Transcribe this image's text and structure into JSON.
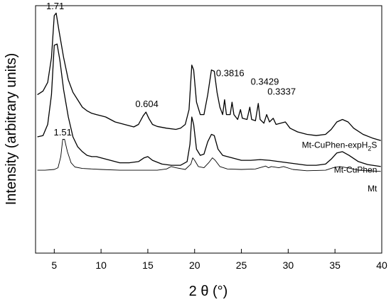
{
  "chart_data": {
    "type": "line",
    "xlabel": "2 θ (°)",
    "ylabel": "Intensity (arbitrary units)",
    "xlim": [
      3,
      40
    ],
    "ylim": [
      0,
      1000
    ],
    "x_ticks": [
      5,
      10,
      15,
      20,
      25,
      30,
      35,
      40
    ],
    "y_ticks_shown": false,
    "grid": false,
    "legend": "none",
    "series": [
      {
        "name": "Mt-CuPhen-expH2S",
        "name_main": "Mt-CuPhen-expH",
        "name_sub": "2",
        "name_tail": "S",
        "points": [
          [
            3.2,
            640
          ],
          [
            3.8,
            655
          ],
          [
            4.3,
            690
          ],
          [
            4.7,
            790
          ],
          [
            5.0,
            960
          ],
          [
            5.2,
            970
          ],
          [
            5.5,
            900
          ],
          [
            6.0,
            790
          ],
          [
            6.5,
            700
          ],
          [
            7.0,
            650
          ],
          [
            7.5,
            620
          ],
          [
            8.0,
            590
          ],
          [
            8.5,
            575
          ],
          [
            9.0,
            565
          ],
          [
            9.5,
            560
          ],
          [
            10.0,
            555
          ],
          [
            10.5,
            550
          ],
          [
            11.0,
            540
          ],
          [
            11.5,
            530
          ],
          [
            12.0,
            525
          ],
          [
            12.5,
            520
          ],
          [
            13.0,
            515
          ],
          [
            13.5,
            510
          ],
          [
            14.0,
            520
          ],
          [
            14.5,
            555
          ],
          [
            14.8,
            570
          ],
          [
            15.1,
            545
          ],
          [
            15.5,
            520
          ],
          [
            16.0,
            512
          ],
          [
            17.0,
            505
          ],
          [
            18.0,
            500
          ],
          [
            18.5,
            505
          ],
          [
            19.0,
            520
          ],
          [
            19.4,
            580
          ],
          [
            19.7,
            760
          ],
          [
            19.9,
            740
          ],
          [
            20.2,
            610
          ],
          [
            20.6,
            560
          ],
          [
            21.0,
            560
          ],
          [
            21.4,
            640
          ],
          [
            21.8,
            740
          ],
          [
            22.1,
            735
          ],
          [
            22.4,
            650
          ],
          [
            22.7,
            590
          ],
          [
            23.0,
            560
          ],
          [
            23.2,
            620
          ],
          [
            23.4,
            560
          ],
          [
            23.8,
            560
          ],
          [
            24.0,
            610
          ],
          [
            24.2,
            560
          ],
          [
            24.6,
            540
          ],
          [
            24.9,
            580
          ],
          [
            25.1,
            545
          ],
          [
            25.6,
            540
          ],
          [
            25.9,
            590
          ],
          [
            26.1,
            540
          ],
          [
            26.5,
            535
          ],
          [
            26.8,
            605
          ],
          [
            27.0,
            540
          ],
          [
            27.4,
            525
          ],
          [
            27.7,
            560
          ],
          [
            28.0,
            530
          ],
          [
            28.4,
            545
          ],
          [
            28.7,
            520
          ],
          [
            29.2,
            525
          ],
          [
            29.7,
            530
          ],
          [
            30.2,
            505
          ],
          [
            31.0,
            490
          ],
          [
            32.0,
            480
          ],
          [
            33.0,
            475
          ],
          [
            34.0,
            480
          ],
          [
            34.6,
            500
          ],
          [
            35.2,
            530
          ],
          [
            35.8,
            540
          ],
          [
            36.4,
            530
          ],
          [
            37.0,
            505
          ],
          [
            38.0,
            480
          ],
          [
            39.0,
            465
          ],
          [
            39.9,
            455
          ]
        ]
      },
      {
        "name": "Mt-CuPhen",
        "points": [
          [
            3.2,
            470
          ],
          [
            3.8,
            475
          ],
          [
            4.3,
            520
          ],
          [
            4.7,
            640
          ],
          [
            5.0,
            840
          ],
          [
            5.3,
            845
          ],
          [
            5.6,
            780
          ],
          [
            6.0,
            660
          ],
          [
            6.5,
            550
          ],
          [
            7.0,
            470
          ],
          [
            7.5,
            430
          ],
          [
            8.0,
            410
          ],
          [
            8.5,
            395
          ],
          [
            9.0,
            390
          ],
          [
            9.5,
            390
          ],
          [
            10.0,
            385
          ],
          [
            11.0,
            375
          ],
          [
            12.0,
            365
          ],
          [
            13.0,
            365
          ],
          [
            14.0,
            370
          ],
          [
            14.6,
            385
          ],
          [
            15.0,
            390
          ],
          [
            15.5,
            375
          ],
          [
            16.5,
            360
          ],
          [
            17.5,
            355
          ],
          [
            18.5,
            355
          ],
          [
            19.2,
            370
          ],
          [
            19.5,
            440
          ],
          [
            19.7,
            550
          ],
          [
            19.9,
            520
          ],
          [
            20.2,
            420
          ],
          [
            20.6,
            395
          ],
          [
            21.0,
            400
          ],
          [
            21.4,
            450
          ],
          [
            21.8,
            480
          ],
          [
            22.1,
            475
          ],
          [
            22.5,
            420
          ],
          [
            23.0,
            395
          ],
          [
            24.0,
            385
          ],
          [
            25.0,
            375
          ],
          [
            26.0,
            375
          ],
          [
            27.0,
            378
          ],
          [
            28.0,
            375
          ],
          [
            29.0,
            370
          ],
          [
            30.0,
            365
          ],
          [
            31.0,
            360
          ],
          [
            32.0,
            355
          ],
          [
            33.0,
            355
          ],
          [
            34.0,
            360
          ],
          [
            34.6,
            380
          ],
          [
            35.2,
            405
          ],
          [
            35.8,
            410
          ],
          [
            36.5,
            395
          ],
          [
            37.5,
            370
          ],
          [
            38.5,
            358
          ],
          [
            39.9,
            350
          ]
        ]
      },
      {
        "name": "Mt",
        "points": [
          [
            3.2,
            335
          ],
          [
            4.0,
            335
          ],
          [
            5.0,
            338
          ],
          [
            5.4,
            345
          ],
          [
            5.7,
            390
          ],
          [
            5.9,
            460
          ],
          [
            6.1,
            460
          ],
          [
            6.4,
            410
          ],
          [
            6.8,
            365
          ],
          [
            7.2,
            348
          ],
          [
            8.0,
            342
          ],
          [
            9.0,
            340
          ],
          [
            10.0,
            338
          ],
          [
            12.0,
            335
          ],
          [
            14.0,
            335
          ],
          [
            16.0,
            335
          ],
          [
            17.0,
            340
          ],
          [
            17.5,
            350
          ],
          [
            18.0,
            345
          ],
          [
            19.0,
            338
          ],
          [
            19.6,
            360
          ],
          [
            19.8,
            385
          ],
          [
            20.0,
            375
          ],
          [
            20.4,
            350
          ],
          [
            21.0,
            345
          ],
          [
            21.5,
            365
          ],
          [
            21.9,
            385
          ],
          [
            22.2,
            375
          ],
          [
            22.7,
            350
          ],
          [
            23.5,
            340
          ],
          [
            25.0,
            338
          ],
          [
            26.5,
            340
          ],
          [
            27.6,
            352
          ],
          [
            27.9,
            345
          ],
          [
            28.2,
            350
          ],
          [
            29.0,
            345
          ],
          [
            29.5,
            350
          ],
          [
            30.5,
            338
          ],
          [
            32.0,
            333
          ],
          [
            34.0,
            335
          ],
          [
            34.8,
            345
          ],
          [
            35.5,
            350
          ],
          [
            36.3,
            345
          ],
          [
            37.5,
            335
          ],
          [
            39.9,
            330
          ]
        ]
      }
    ],
    "annotations": [
      {
        "text": "1.71",
        "x": 5.1,
        "y": 985
      },
      {
        "text": "1.51",
        "x": 5.9,
        "y": 475
      },
      {
        "text": "0.604",
        "x": 14.9,
        "y": 590
      },
      {
        "text": "0.3816",
        "x": 23.8,
        "y": 715
      },
      {
        "text": "0.3429",
        "x": 27.5,
        "y": 680
      },
      {
        "text": "0.3337",
        "x": 29.3,
        "y": 640
      }
    ],
    "series_label_positions": [
      {
        "x": 39.5,
        "y": 425
      },
      {
        "x": 39.5,
        "y": 325
      },
      {
        "x": 39.5,
        "y": 250
      }
    ]
  }
}
